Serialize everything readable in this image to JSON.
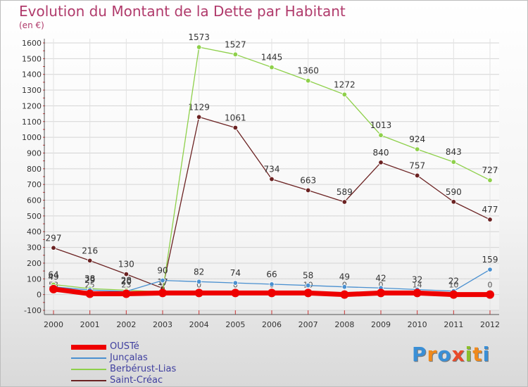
{
  "header": {
    "title": "Evolution du Montant de la Dette par Habitant",
    "subtitle": "(en €)"
  },
  "logo": {
    "letters": [
      "P",
      "r",
      "o",
      "x",
      "i",
      "t",
      "i"
    ],
    "colors": [
      "#3a8fd6",
      "#f08a1c",
      "#3a8fd6",
      "#e94b2b",
      "#8bbf2b",
      "#f08a1c",
      "#3a8fd6"
    ]
  },
  "chart_data": {
    "type": "line",
    "title": "Evolution du Montant de la Dette par Habitant",
    "subtitle": "(en €)",
    "xlabel": "",
    "ylabel": "",
    "x": [
      "2000",
      "2001",
      "2002",
      "2003",
      "2004",
      "2005",
      "2006",
      "2007",
      "2008",
      "2009",
      "2010",
      "2011",
      "2012"
    ],
    "ylim": [
      -100,
      1600
    ],
    "yticks": [
      "-100",
      "0",
      "100",
      "200",
      "300",
      "400",
      "500",
      "600",
      "700",
      "800",
      "900",
      "1000",
      "1100",
      "1200",
      "1300",
      "1400",
      "1500",
      "1600"
    ],
    "grid": true,
    "legend_position": "bottom-left",
    "series": [
      {
        "name": "OUSTé",
        "color": "#ee0000",
        "values": [
          35,
          5,
          5,
          10,
          10,
          10,
          10,
          10,
          0,
          10,
          10,
          0,
          0
        ],
        "labels": [
          "",
          "",
          "",
          "",
          "",
          "",
          "",
          "",
          "",
          "",
          "",
          "",
          ""
        ]
      },
      {
        "name": "Junçalas",
        "color": "#4a90d0",
        "values": [
          49,
          29,
          20,
          90,
          82,
          74,
          66,
          58,
          49,
          42,
          32,
          22,
          159
        ],
        "labels": [
          "49",
          "29",
          "20",
          "90",
          "82",
          "74",
          "66",
          "58",
          "49",
          "42",
          "32",
          "22",
          "159"
        ]
      },
      {
        "name": "Berbérust-Lias",
        "color": "#8ed04a",
        "values": [
          64,
          38,
          28,
          17,
          1573,
          1527,
          1445,
          1360,
          1272,
          1013,
          924,
          843,
          727
        ],
        "labels": [
          "64",
          "38",
          "28",
          "17",
          "1573",
          "1527",
          "1445",
          "1360",
          "1272",
          "1013",
          "924",
          "843",
          "727"
        ]
      },
      {
        "name": "Saint-Créac",
        "color": "#6b2222",
        "values": [
          297,
          216,
          130,
          40,
          1129,
          1061,
          734,
          663,
          589,
          840,
          757,
          590,
          477
        ],
        "labels": [
          "297",
          "216",
          "130",
          "",
          "1129",
          "1061",
          "734",
          "663",
          "589",
          "840",
          "757",
          "590",
          "477"
        ]
      }
    ],
    "extra_value_labels": [
      {
        "x": "2000",
        "text": "53"
      },
      {
        "x": "2001",
        "text": "25"
      },
      {
        "x": "2002",
        "text": "23"
      },
      {
        "x": "2003",
        "text": "0"
      },
      {
        "x": "2004",
        "text": "0"
      },
      {
        "x": "2005",
        "text": "0"
      },
      {
        "x": "2006",
        "text": "0"
      },
      {
        "x": "2007",
        "text": "10"
      },
      {
        "x": "2008",
        "text": "0"
      },
      {
        "x": "2009",
        "text": "0"
      },
      {
        "x": "2010",
        "text": "14"
      },
      {
        "x": "2011",
        "text": "10"
      },
      {
        "x": "2012",
        "text": "0"
      }
    ]
  }
}
